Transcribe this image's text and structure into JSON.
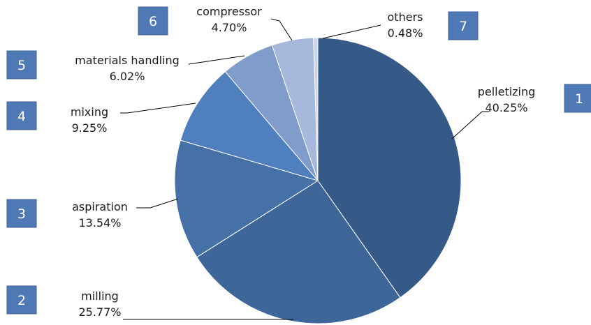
{
  "chart_data": {
    "type": "pie",
    "title": "",
    "slices": [
      {
        "index": "1",
        "label": "pelletizing",
        "value": 40.25,
        "display": "40.25%",
        "color": "#355a88"
      },
      {
        "index": "2",
        "label": "milling",
        "value": 25.77,
        "display": "25.77%",
        "color": "#3e6699"
      },
      {
        "index": "3",
        "label": "aspiration",
        "value": 13.54,
        "display": "13.54%",
        "color": "#4671a7"
      },
      {
        "index": "4",
        "label": "mixing",
        "value": 9.25,
        "display": "9.25%",
        "color": "#4f7fbd"
      },
      {
        "index": "5",
        "label": "materials handling",
        "value": 6.02,
        "display": "6.02%",
        "color": "#7f9ccb"
      },
      {
        "index": "6",
        "label": "compressor",
        "value": 4.7,
        "display": "4.70%",
        "color": "#a6b8db"
      },
      {
        "index": "7",
        "label": "others",
        "value": 0.48,
        "display": "0.48%",
        "color": "#c9d3ea"
      }
    ],
    "badge_color": "#4f79b5",
    "legend": "none"
  }
}
